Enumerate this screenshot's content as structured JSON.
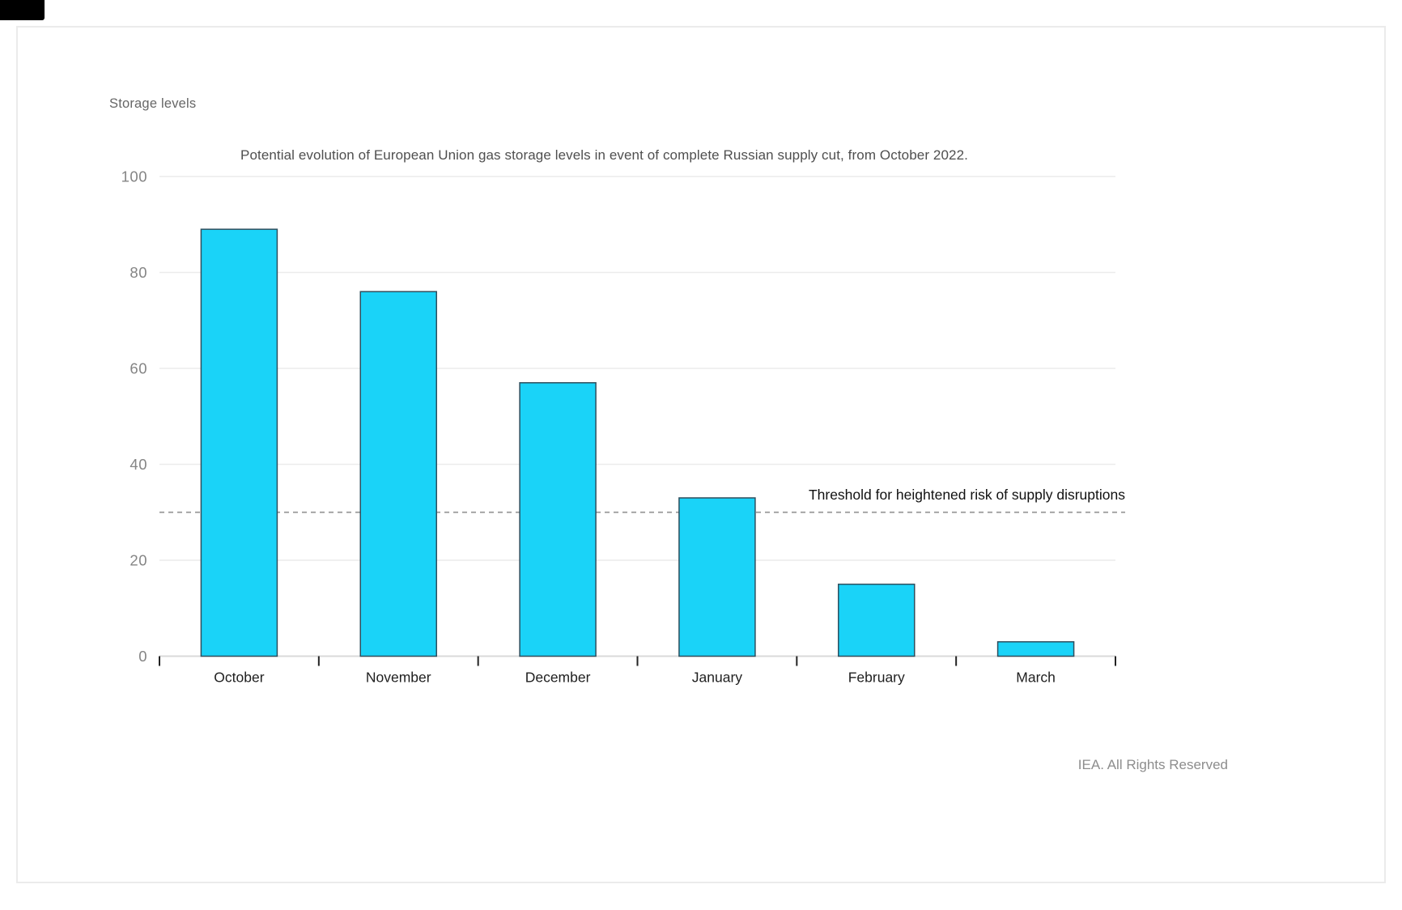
{
  "page": {
    "footer": "IEA. All Rights Reserved"
  },
  "chart_data": {
    "type": "bar",
    "title": "Potential evolution of European Union gas storage levels in event of complete Russian supply cut, from October 2022.",
    "axis_title": "Storage levels",
    "categories": [
      "October",
      "November",
      "December",
      "January",
      "February",
      "March"
    ],
    "values": [
      89,
      76,
      57,
      33,
      15,
      3
    ],
    "yticks": [
      0,
      20,
      40,
      60,
      80,
      100
    ],
    "ylim": [
      0,
      100
    ],
    "grid": true,
    "legend": "none",
    "threshold": {
      "value": 30,
      "label": "Threshold for heightened risk of supply disruptions"
    },
    "colors": {
      "bar_fill": "#1AD3F8",
      "bar_stroke": "#2F4F5E",
      "grid_line": "#ECECEC",
      "axis_line": "#D9D9D9",
      "tick_mark": "#222222",
      "threshold_line": "#999999"
    }
  }
}
